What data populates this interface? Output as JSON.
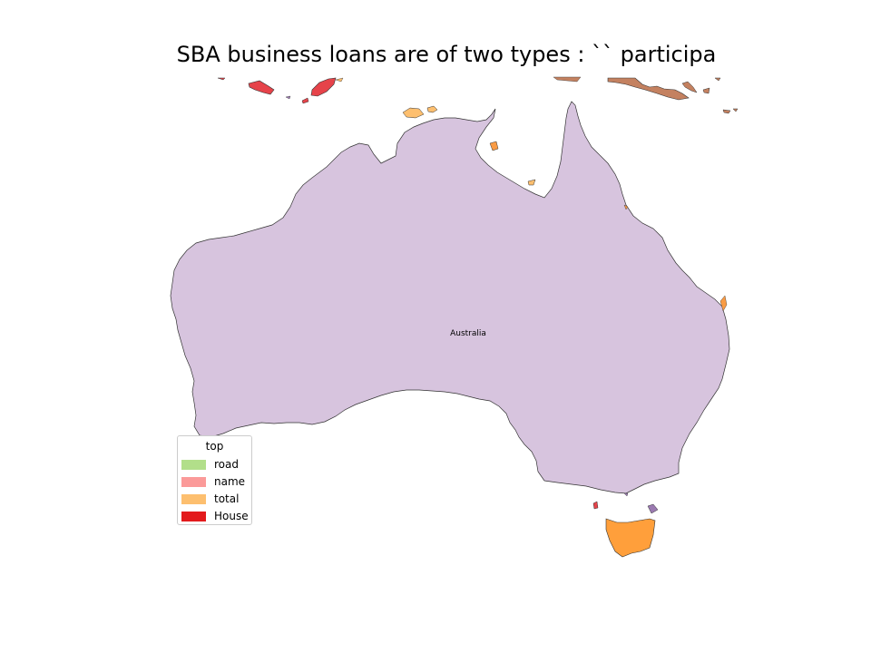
{
  "title": "SBA business loans are of two types : `` participa",
  "legend": {
    "title": "top",
    "entries": [
      {
        "label": "road",
        "color": "#b2df8a"
      },
      {
        "label": "name",
        "color": "#fb9a99"
      },
      {
        "label": "total",
        "color": "#fdbf6f"
      },
      {
        "label": "House",
        "color": "#e31a1c"
      }
    ]
  },
  "regions": {
    "australia": {
      "label": "Australia",
      "color": "#d7c4de"
    },
    "tasmania": {
      "color": "#ff9f3b"
    },
    "papua_new_guinea": {
      "color": "#c48160"
    },
    "timor": {
      "color": "#e6434a"
    },
    "small_islands": {
      "color": "#fdbf6f"
    },
    "eastern_isles": {
      "color": "#f99b44"
    },
    "bass_strait": {
      "color": "#9b7ab1"
    }
  },
  "chart_data": {
    "type": "choropleth map",
    "title": "SBA business loans are of two types : `` participa",
    "legend_title": "top",
    "legend_position": "lower-left",
    "categories": [
      "road",
      "name",
      "total",
      "House"
    ],
    "colors": [
      "#b2df8a",
      "#fb9a99",
      "#fdbf6f",
      "#e31a1c"
    ],
    "labeled_regions": [
      "Australia"
    ]
  }
}
